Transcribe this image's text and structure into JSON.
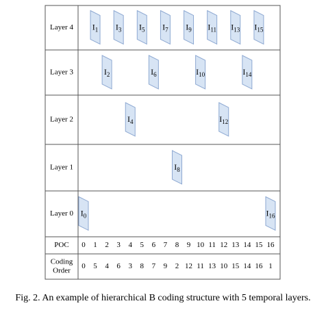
{
  "rows": [
    {
      "label": "Layer 4",
      "frames": [
        {
          "letter": "I",
          "sub": "1"
        },
        {
          "letter": "I",
          "sub": "3"
        },
        {
          "letter": "I",
          "sub": "5"
        },
        {
          "letter": "I",
          "sub": "7"
        },
        {
          "letter": "I",
          "sub": "9"
        },
        {
          "letter": "I",
          "sub": "11"
        },
        {
          "letter": "I",
          "sub": "13"
        },
        {
          "letter": "I",
          "sub": "15"
        }
      ]
    },
    {
      "label": "Layer 3",
      "frames": [
        {
          "letter": "I",
          "sub": "2"
        },
        {
          "letter": "I",
          "sub": "6"
        },
        {
          "letter": "I",
          "sub": "10"
        },
        {
          "letter": "I",
          "sub": "14"
        }
      ]
    },
    {
      "label": "Layer 2",
      "frames": [
        {
          "letter": "I",
          "sub": "4"
        },
        {
          "letter": "I",
          "sub": "12"
        }
      ]
    },
    {
      "label": "Layer 1",
      "frames": [
        {
          "letter": "I",
          "sub": "8"
        }
      ]
    },
    {
      "label": "Layer 0",
      "frames": [
        {
          "letter": "I",
          "sub": "0"
        },
        {
          "letter": "I",
          "sub": "16"
        }
      ]
    }
  ],
  "poc": {
    "label": "POC",
    "values": [
      "0",
      "1",
      "2",
      "3",
      "4",
      "5",
      "6",
      "7",
      "8",
      "9",
      "10",
      "11",
      "12",
      "13",
      "14",
      "15",
      "16"
    ]
  },
  "coding_order": {
    "label": [
      "Coding",
      "Order"
    ],
    "values": [
      "0",
      "5",
      "4",
      "6",
      "3",
      "8",
      "7",
      "9",
      "2",
      "12",
      "11",
      "13",
      "10",
      "15",
      "14",
      "16",
      "1"
    ]
  },
  "caption": "Fig. 2.  An example of hierarchical B coding structure with 5 temporal layers."
}
